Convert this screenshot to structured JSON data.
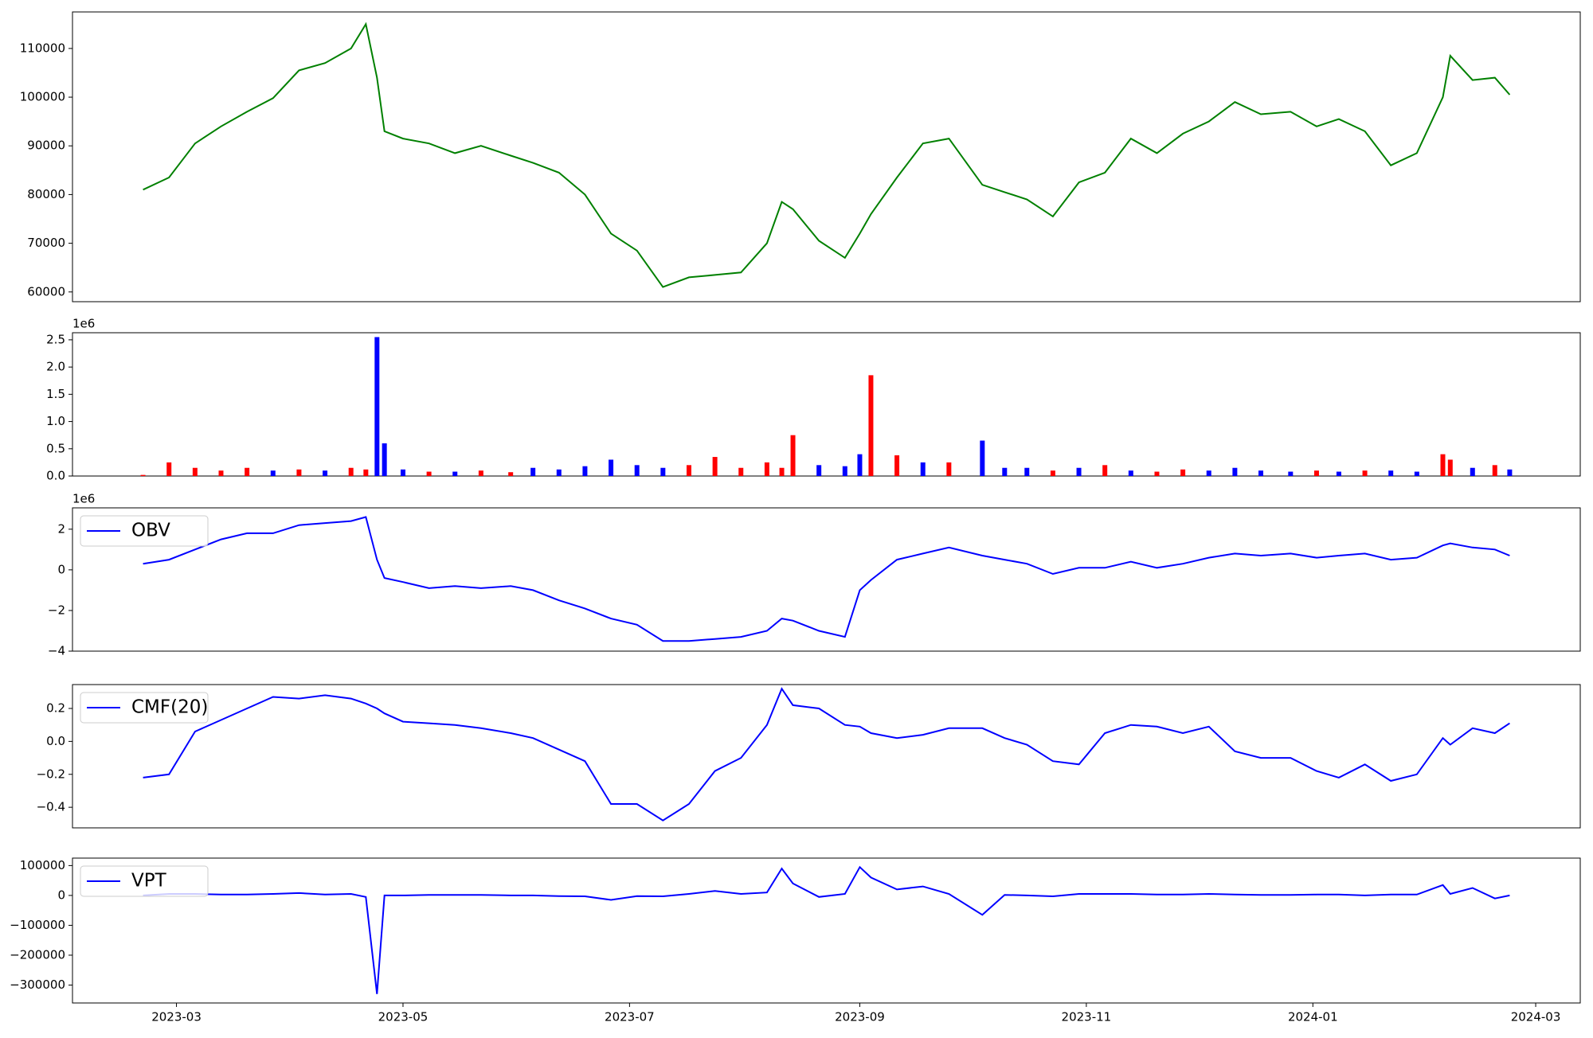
{
  "chart_data": [
    {
      "type": "line",
      "color": "#008000",
      "xlim": [
        "2023-02-01",
        "2024-03-13"
      ],
      "ylim": [
        58000,
        117500
      ],
      "yticks": [
        60000,
        70000,
        80000,
        90000,
        100000,
        110000
      ],
      "x": [
        "2023-02-20",
        "2023-02-27",
        "2023-03-06",
        "2023-03-13",
        "2023-03-20",
        "2023-03-27",
        "2023-04-03",
        "2023-04-10",
        "2023-04-17",
        "2023-04-21",
        "2023-04-24",
        "2023-04-26",
        "2023-05-01",
        "2023-05-08",
        "2023-05-15",
        "2023-05-22",
        "2023-05-30",
        "2023-06-05",
        "2023-06-12",
        "2023-06-19",
        "2023-06-26",
        "2023-07-03",
        "2023-07-10",
        "2023-07-17",
        "2023-07-24",
        "2023-07-31",
        "2023-08-07",
        "2023-08-11",
        "2023-08-14",
        "2023-08-21",
        "2023-08-28",
        "2023-09-01",
        "2023-09-04",
        "2023-09-11",
        "2023-09-18",
        "2023-09-25",
        "2023-10-04",
        "2023-10-10",
        "2023-10-16",
        "2023-10-23",
        "2023-10-30",
        "2023-11-06",
        "2023-11-13",
        "2023-11-20",
        "2023-11-27",
        "2023-12-04",
        "2023-12-11",
        "2023-12-18",
        "2023-12-26",
        "2024-01-02",
        "2024-01-08",
        "2024-01-15",
        "2024-01-22",
        "2024-01-29",
        "2024-02-05",
        "2024-02-07",
        "2024-02-13",
        "2024-02-19",
        "2024-02-23"
      ],
      "values": [
        81000,
        83500,
        90500,
        94000,
        97000,
        99800,
        105500,
        107000,
        110000,
        115000,
        104000,
        93000,
        91500,
        90500,
        88500,
        90000,
        88000,
        86500,
        84500,
        80000,
        72000,
        68500,
        61000,
        63000,
        63500,
        64000,
        70000,
        78500,
        77000,
        70500,
        67000,
        72000,
        76000,
        83500,
        90500,
        91500,
        82000,
        80500,
        79000,
        75500,
        82500,
        84500,
        91500,
        88500,
        92500,
        95000,
        99000,
        96500,
        97000,
        94000,
        95500,
        93000,
        86000,
        88500,
        100000,
        108500,
        103500,
        104000,
        100500
      ]
    },
    {
      "type": "bar",
      "offset_text": "1e6",
      "xlim": [
        "2023-02-01",
        "2024-03-13"
      ],
      "ylim": [
        0,
        2630000
      ],
      "yticks": [
        {
          "value": 0,
          "label": "0.0"
        },
        {
          "value": 500000,
          "label": "0.5"
        },
        {
          "value": 1000000,
          "label": "1.0"
        },
        {
          "value": 1500000,
          "label": "1.5"
        },
        {
          "value": 2000000,
          "label": "2.0"
        },
        {
          "value": 2500000,
          "label": "2.5"
        }
      ],
      "x": [
        "2023-02-20",
        "2023-02-27",
        "2023-03-06",
        "2023-03-13",
        "2023-03-20",
        "2023-03-27",
        "2023-04-03",
        "2023-04-10",
        "2023-04-17",
        "2023-04-21",
        "2023-04-24",
        "2023-04-26",
        "2023-05-01",
        "2023-05-08",
        "2023-05-15",
        "2023-05-22",
        "2023-05-30",
        "2023-06-05",
        "2023-06-12",
        "2023-06-19",
        "2023-06-26",
        "2023-07-03",
        "2023-07-10",
        "2023-07-17",
        "2023-07-24",
        "2023-07-31",
        "2023-08-07",
        "2023-08-11",
        "2023-08-14",
        "2023-08-21",
        "2023-08-28",
        "2023-09-01",
        "2023-09-04",
        "2023-09-11",
        "2023-09-18",
        "2023-09-25",
        "2023-10-04",
        "2023-10-10",
        "2023-10-16",
        "2023-10-23",
        "2023-10-30",
        "2023-11-06",
        "2023-11-13",
        "2023-11-20",
        "2023-11-27",
        "2023-12-04",
        "2023-12-11",
        "2023-12-18",
        "2023-12-26",
        "2024-01-02",
        "2024-01-08",
        "2024-01-15",
        "2024-01-22",
        "2024-01-29",
        "2024-02-05",
        "2024-02-07",
        "2024-02-13",
        "2024-02-19",
        "2024-02-23"
      ],
      "values": [
        20000,
        250000,
        150000,
        100000,
        150000,
        100000,
        120000,
        100000,
        150000,
        120000,
        2550000,
        600000,
        120000,
        80000,
        80000,
        100000,
        70000,
        150000,
        120000,
        180000,
        300000,
        200000,
        150000,
        200000,
        350000,
        150000,
        250000,
        150000,
        750000,
        200000,
        180000,
        400000,
        1850000,
        380000,
        250000,
        250000,
        650000,
        150000,
        150000,
        100000,
        150000,
        200000,
        100000,
        80000,
        120000,
        100000,
        150000,
        100000,
        80000,
        100000,
        80000,
        100000,
        100000,
        80000,
        400000,
        300000,
        150000,
        200000,
        120000
      ],
      "colors": [
        "#ff0000",
        "#ff0000",
        "#ff0000",
        "#ff0000",
        "#ff0000",
        "#0000ff",
        "#ff0000",
        "#0000ff",
        "#ff0000",
        "#ff0000",
        "#0000ff",
        "#0000ff",
        "#0000ff",
        "#ff0000",
        "#0000ff",
        "#ff0000",
        "#ff0000",
        "#0000ff",
        "#0000ff",
        "#0000ff",
        "#0000ff",
        "#0000ff",
        "#0000ff",
        "#ff0000",
        "#ff0000",
        "#ff0000",
        "#ff0000",
        "#ff0000",
        "#ff0000",
        "#0000ff",
        "#0000ff",
        "#0000ff",
        "#ff0000",
        "#ff0000",
        "#0000ff",
        "#ff0000",
        "#0000ff",
        "#0000ff",
        "#0000ff",
        "#ff0000",
        "#0000ff",
        "#ff0000",
        "#0000ff",
        "#ff0000",
        "#ff0000",
        "#0000ff",
        "#0000ff",
        "#0000ff",
        "#0000ff",
        "#ff0000",
        "#0000ff",
        "#ff0000",
        "#0000ff",
        "#0000ff",
        "#ff0000",
        "#ff0000",
        "#0000ff",
        "#ff0000",
        "#0000ff"
      ]
    },
    {
      "type": "line",
      "offset_text": "1e6",
      "legend": "upper left",
      "xlim": [
        "2023-02-01",
        "2024-03-13"
      ],
      "ylim": [
        -4000000,
        3050000
      ],
      "yticks": [
        {
          "value": -4000000,
          "label": "−4"
        },
        {
          "value": -2000000,
          "label": "−2"
        },
        {
          "value": 0,
          "label": "0"
        },
        {
          "value": 2000000,
          "label": "2"
        }
      ],
      "x": [
        "2023-02-20",
        "2023-02-27",
        "2023-03-06",
        "2023-03-13",
        "2023-03-20",
        "2023-03-27",
        "2023-04-03",
        "2023-04-10",
        "2023-04-17",
        "2023-04-21",
        "2023-04-24",
        "2023-04-26",
        "2023-05-01",
        "2023-05-08",
        "2023-05-15",
        "2023-05-22",
        "2023-05-30",
        "2023-06-05",
        "2023-06-12",
        "2023-06-19",
        "2023-06-26",
        "2023-07-03",
        "2023-07-10",
        "2023-07-17",
        "2023-07-24",
        "2023-07-31",
        "2023-08-07",
        "2023-08-11",
        "2023-08-14",
        "2023-08-21",
        "2023-08-28",
        "2023-09-01",
        "2023-09-04",
        "2023-09-11",
        "2023-09-18",
        "2023-09-25",
        "2023-10-04",
        "2023-10-10",
        "2023-10-16",
        "2023-10-23",
        "2023-10-30",
        "2023-11-06",
        "2023-11-13",
        "2023-11-20",
        "2023-11-27",
        "2023-12-04",
        "2023-12-11",
        "2023-12-18",
        "2023-12-26",
        "2024-01-02",
        "2024-01-08",
        "2024-01-15",
        "2024-01-22",
        "2024-01-29",
        "2024-02-05",
        "2024-02-07",
        "2024-02-13",
        "2024-02-19",
        "2024-02-23"
      ],
      "series": [
        {
          "name": "OBV",
          "color": "#0000ff",
          "values": [
            300000,
            500000,
            1000000,
            1500000,
            1800000,
            1800000,
            2200000,
            2300000,
            2400000,
            2600000,
            500000,
            -400000,
            -600000,
            -900000,
            -800000,
            -900000,
            -800000,
            -1000000,
            -1500000,
            -1900000,
            -2400000,
            -2700000,
            -3500000,
            -3500000,
            -3400000,
            -3300000,
            -3000000,
            -2400000,
            -2500000,
            -3000000,
            -3300000,
            -1000000,
            -500000,
            500000,
            800000,
            1100000,
            700000,
            500000,
            300000,
            -200000,
            100000,
            100000,
            400000,
            100000,
            300000,
            600000,
            800000,
            700000,
            800000,
            600000,
            700000,
            800000,
            500000,
            600000,
            1200000,
            1300000,
            1100000,
            1000000,
            700000
          ]
        }
      ]
    },
    {
      "type": "line",
      "legend": "upper left",
      "xlim": [
        "2023-02-01",
        "2024-03-13"
      ],
      "ylim": [
        -0.525,
        0.345
      ],
      "yticks": [
        {
          "value": -0.4,
          "label": "−0.4"
        },
        {
          "value": -0.2,
          "label": "−0.2"
        },
        {
          "value": 0,
          "label": "0.0"
        },
        {
          "value": 0.2,
          "label": "0.2"
        }
      ],
      "x": [
        "2023-02-20",
        "2023-02-27",
        "2023-03-06",
        "2023-03-13",
        "2023-03-20",
        "2023-03-27",
        "2023-04-03",
        "2023-04-10",
        "2023-04-17",
        "2023-04-21",
        "2023-04-24",
        "2023-04-26",
        "2023-05-01",
        "2023-05-08",
        "2023-05-15",
        "2023-05-22",
        "2023-05-30",
        "2023-06-05",
        "2023-06-12",
        "2023-06-19",
        "2023-06-26",
        "2023-07-03",
        "2023-07-10",
        "2023-07-17",
        "2023-07-24",
        "2023-07-31",
        "2023-08-07",
        "2023-08-11",
        "2023-08-14",
        "2023-08-21",
        "2023-08-28",
        "2023-09-01",
        "2023-09-04",
        "2023-09-11",
        "2023-09-18",
        "2023-09-25",
        "2023-10-04",
        "2023-10-10",
        "2023-10-16",
        "2023-10-23",
        "2023-10-30",
        "2023-11-06",
        "2023-11-13",
        "2023-11-20",
        "2023-11-27",
        "2023-12-04",
        "2023-12-11",
        "2023-12-18",
        "2023-12-26",
        "2024-01-02",
        "2024-01-08",
        "2024-01-15",
        "2024-01-22",
        "2024-01-29",
        "2024-02-05",
        "2024-02-07",
        "2024-02-13",
        "2024-02-19",
        "2024-02-23"
      ],
      "series": [
        {
          "name": "CMF(20)",
          "color": "#0000ff",
          "values": [
            -0.22,
            -0.2,
            0.06,
            0.13,
            0.2,
            0.27,
            0.26,
            0.28,
            0.26,
            0.23,
            0.2,
            0.17,
            0.12,
            0.11,
            0.1,
            0.08,
            0.05,
            0.02,
            -0.05,
            -0.12,
            -0.38,
            -0.38,
            -0.48,
            -0.38,
            -0.18,
            -0.1,
            0.1,
            0.32,
            0.22,
            0.2,
            0.1,
            0.09,
            0.05,
            0.02,
            0.04,
            0.08,
            0.08,
            0.02,
            -0.02,
            -0.12,
            -0.14,
            0.05,
            0.1,
            0.09,
            0.05,
            0.09,
            -0.06,
            -0.1,
            -0.1,
            -0.18,
            -0.22,
            -0.14,
            -0.24,
            -0.2,
            0.02,
            -0.02,
            0.08,
            0.05,
            0.11
          ]
        }
      ]
    },
    {
      "type": "line",
      "legend": "upper left",
      "xlim": [
        "2023-02-01",
        "2024-03-13"
      ],
      "ylim": [
        -360000,
        125000
      ],
      "yticks": [
        {
          "value": -300000,
          "label": "−300000"
        },
        {
          "value": -200000,
          "label": "−200000"
        },
        {
          "value": -100000,
          "label": "−100000"
        },
        0,
        100000
      ],
      "xticks": [
        {
          "value": "2023-03-01",
          "label": "2023-03"
        },
        {
          "value": "2023-05-01",
          "label": "2023-05"
        },
        {
          "value": "2023-07-01",
          "label": "2023-07"
        },
        {
          "value": "2023-09-01",
          "label": "2023-09"
        },
        {
          "value": "2023-11-01",
          "label": "2023-11"
        },
        {
          "value": "2024-01-01",
          "label": "2024-01"
        },
        {
          "value": "2024-03-01",
          "label": "2024-03"
        }
      ],
      "x": [
        "2023-02-20",
        "2023-02-27",
        "2023-03-06",
        "2023-03-13",
        "2023-03-20",
        "2023-03-27",
        "2023-04-03",
        "2023-04-10",
        "2023-04-17",
        "2023-04-21",
        "2023-04-24",
        "2023-04-26",
        "2023-05-01",
        "2023-05-08",
        "2023-05-15",
        "2023-05-22",
        "2023-05-30",
        "2023-06-05",
        "2023-06-12",
        "2023-06-19",
        "2023-06-26",
        "2023-07-03",
        "2023-07-10",
        "2023-07-17",
        "2023-07-24",
        "2023-07-31",
        "2023-08-07",
        "2023-08-11",
        "2023-08-14",
        "2023-08-21",
        "2023-08-28",
        "2023-09-01",
        "2023-09-04",
        "2023-09-11",
        "2023-09-18",
        "2023-09-25",
        "2023-10-04",
        "2023-10-10",
        "2023-10-16",
        "2023-10-23",
        "2023-10-30",
        "2023-11-06",
        "2023-11-13",
        "2023-11-20",
        "2023-11-27",
        "2023-12-04",
        "2023-12-11",
        "2023-12-18",
        "2023-12-26",
        "2024-01-02",
        "2024-01-08",
        "2024-01-15",
        "2024-01-22",
        "2024-01-29",
        "2024-02-05",
        "2024-02-07",
        "2024-02-13",
        "2024-02-19",
        "2024-02-23"
      ],
      "series": [
        {
          "name": "VPT",
          "color": "#0000ff",
          "values": [
            0,
            5000,
            5000,
            3000,
            3000,
            5000,
            8000,
            3000,
            5000,
            -5000,
            -330000,
            0,
            0,
            2000,
            2000,
            2000,
            0,
            0,
            -2000,
            -3000,
            -15000,
            -2000,
            -3000,
            5000,
            15000,
            5000,
            10000,
            90000,
            40000,
            -5000,
            5000,
            95000,
            60000,
            20000,
            30000,
            5000,
            -65000,
            2000,
            0,
            -3000,
            5000,
            5000,
            5000,
            3000,
            3000,
            5000,
            3000,
            2000,
            2000,
            3000,
            3000,
            0,
            3000,
            3000,
            35000,
            5000,
            25000,
            -10000,
            0
          ]
        }
      ]
    }
  ]
}
